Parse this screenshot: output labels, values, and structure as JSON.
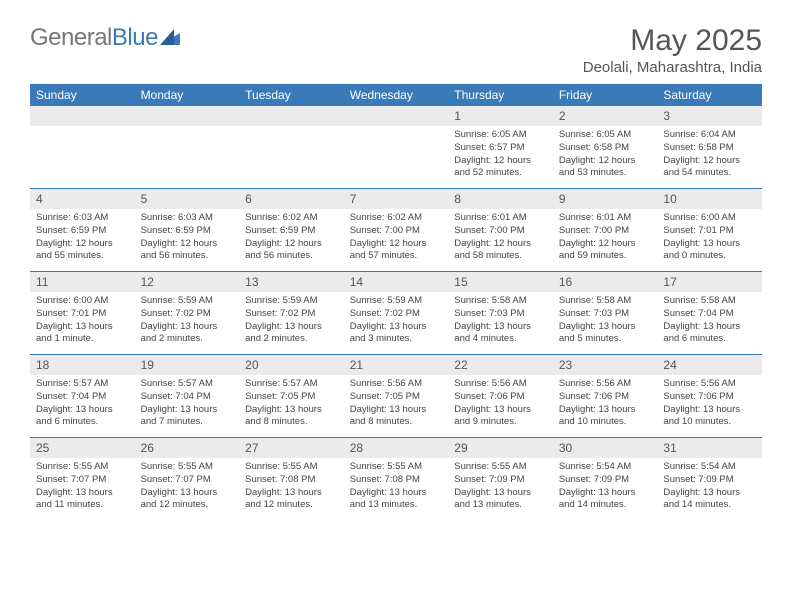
{
  "logo": {
    "part1": "General",
    "part2": "Blue"
  },
  "title": "May 2025",
  "location": "Deolali, Maharashtra, India",
  "accent_color": "#3a7ab8",
  "header_bg": "#3a7ab8",
  "daynum_bg": "#ebebeb",
  "weekdays": [
    "Sunday",
    "Monday",
    "Tuesday",
    "Wednesday",
    "Thursday",
    "Friday",
    "Saturday"
  ],
  "weeks": [
    [
      null,
      null,
      null,
      null,
      {
        "n": "1",
        "sunrise": "Sunrise: 6:05 AM",
        "sunset": "Sunset: 6:57 PM",
        "daylight": "Daylight: 12 hours and 52 minutes."
      },
      {
        "n": "2",
        "sunrise": "Sunrise: 6:05 AM",
        "sunset": "Sunset: 6:58 PM",
        "daylight": "Daylight: 12 hours and 53 minutes."
      },
      {
        "n": "3",
        "sunrise": "Sunrise: 6:04 AM",
        "sunset": "Sunset: 6:58 PM",
        "daylight": "Daylight: 12 hours and 54 minutes."
      }
    ],
    [
      {
        "n": "4",
        "sunrise": "Sunrise: 6:03 AM",
        "sunset": "Sunset: 6:59 PM",
        "daylight": "Daylight: 12 hours and 55 minutes."
      },
      {
        "n": "5",
        "sunrise": "Sunrise: 6:03 AM",
        "sunset": "Sunset: 6:59 PM",
        "daylight": "Daylight: 12 hours and 56 minutes."
      },
      {
        "n": "6",
        "sunrise": "Sunrise: 6:02 AM",
        "sunset": "Sunset: 6:59 PM",
        "daylight": "Daylight: 12 hours and 56 minutes."
      },
      {
        "n": "7",
        "sunrise": "Sunrise: 6:02 AM",
        "sunset": "Sunset: 7:00 PM",
        "daylight": "Daylight: 12 hours and 57 minutes."
      },
      {
        "n": "8",
        "sunrise": "Sunrise: 6:01 AM",
        "sunset": "Sunset: 7:00 PM",
        "daylight": "Daylight: 12 hours and 58 minutes."
      },
      {
        "n": "9",
        "sunrise": "Sunrise: 6:01 AM",
        "sunset": "Sunset: 7:00 PM",
        "daylight": "Daylight: 12 hours and 59 minutes."
      },
      {
        "n": "10",
        "sunrise": "Sunrise: 6:00 AM",
        "sunset": "Sunset: 7:01 PM",
        "daylight": "Daylight: 13 hours and 0 minutes."
      }
    ],
    [
      {
        "n": "11",
        "sunrise": "Sunrise: 6:00 AM",
        "sunset": "Sunset: 7:01 PM",
        "daylight": "Daylight: 13 hours and 1 minute."
      },
      {
        "n": "12",
        "sunrise": "Sunrise: 5:59 AM",
        "sunset": "Sunset: 7:02 PM",
        "daylight": "Daylight: 13 hours and 2 minutes."
      },
      {
        "n": "13",
        "sunrise": "Sunrise: 5:59 AM",
        "sunset": "Sunset: 7:02 PM",
        "daylight": "Daylight: 13 hours and 2 minutes."
      },
      {
        "n": "14",
        "sunrise": "Sunrise: 5:59 AM",
        "sunset": "Sunset: 7:02 PM",
        "daylight": "Daylight: 13 hours and 3 minutes."
      },
      {
        "n": "15",
        "sunrise": "Sunrise: 5:58 AM",
        "sunset": "Sunset: 7:03 PM",
        "daylight": "Daylight: 13 hours and 4 minutes."
      },
      {
        "n": "16",
        "sunrise": "Sunrise: 5:58 AM",
        "sunset": "Sunset: 7:03 PM",
        "daylight": "Daylight: 13 hours and 5 minutes."
      },
      {
        "n": "17",
        "sunrise": "Sunrise: 5:58 AM",
        "sunset": "Sunset: 7:04 PM",
        "daylight": "Daylight: 13 hours and 6 minutes."
      }
    ],
    [
      {
        "n": "18",
        "sunrise": "Sunrise: 5:57 AM",
        "sunset": "Sunset: 7:04 PM",
        "daylight": "Daylight: 13 hours and 6 minutes."
      },
      {
        "n": "19",
        "sunrise": "Sunrise: 5:57 AM",
        "sunset": "Sunset: 7:04 PM",
        "daylight": "Daylight: 13 hours and 7 minutes."
      },
      {
        "n": "20",
        "sunrise": "Sunrise: 5:57 AM",
        "sunset": "Sunset: 7:05 PM",
        "daylight": "Daylight: 13 hours and 8 minutes."
      },
      {
        "n": "21",
        "sunrise": "Sunrise: 5:56 AM",
        "sunset": "Sunset: 7:05 PM",
        "daylight": "Daylight: 13 hours and 8 minutes."
      },
      {
        "n": "22",
        "sunrise": "Sunrise: 5:56 AM",
        "sunset": "Sunset: 7:06 PM",
        "daylight": "Daylight: 13 hours and 9 minutes."
      },
      {
        "n": "23",
        "sunrise": "Sunrise: 5:56 AM",
        "sunset": "Sunset: 7:06 PM",
        "daylight": "Daylight: 13 hours and 10 minutes."
      },
      {
        "n": "24",
        "sunrise": "Sunrise: 5:56 AM",
        "sunset": "Sunset: 7:06 PM",
        "daylight": "Daylight: 13 hours and 10 minutes."
      }
    ],
    [
      {
        "n": "25",
        "sunrise": "Sunrise: 5:55 AM",
        "sunset": "Sunset: 7:07 PM",
        "daylight": "Daylight: 13 hours and 11 minutes."
      },
      {
        "n": "26",
        "sunrise": "Sunrise: 5:55 AM",
        "sunset": "Sunset: 7:07 PM",
        "daylight": "Daylight: 13 hours and 12 minutes."
      },
      {
        "n": "27",
        "sunrise": "Sunrise: 5:55 AM",
        "sunset": "Sunset: 7:08 PM",
        "daylight": "Daylight: 13 hours and 12 minutes."
      },
      {
        "n": "28",
        "sunrise": "Sunrise: 5:55 AM",
        "sunset": "Sunset: 7:08 PM",
        "daylight": "Daylight: 13 hours and 13 minutes."
      },
      {
        "n": "29",
        "sunrise": "Sunrise: 5:55 AM",
        "sunset": "Sunset: 7:09 PM",
        "daylight": "Daylight: 13 hours and 13 minutes."
      },
      {
        "n": "30",
        "sunrise": "Sunrise: 5:54 AM",
        "sunset": "Sunset: 7:09 PM",
        "daylight": "Daylight: 13 hours and 14 minutes."
      },
      {
        "n": "31",
        "sunrise": "Sunrise: 5:54 AM",
        "sunset": "Sunset: 7:09 PM",
        "daylight": "Daylight: 13 hours and 14 minutes."
      }
    ]
  ]
}
